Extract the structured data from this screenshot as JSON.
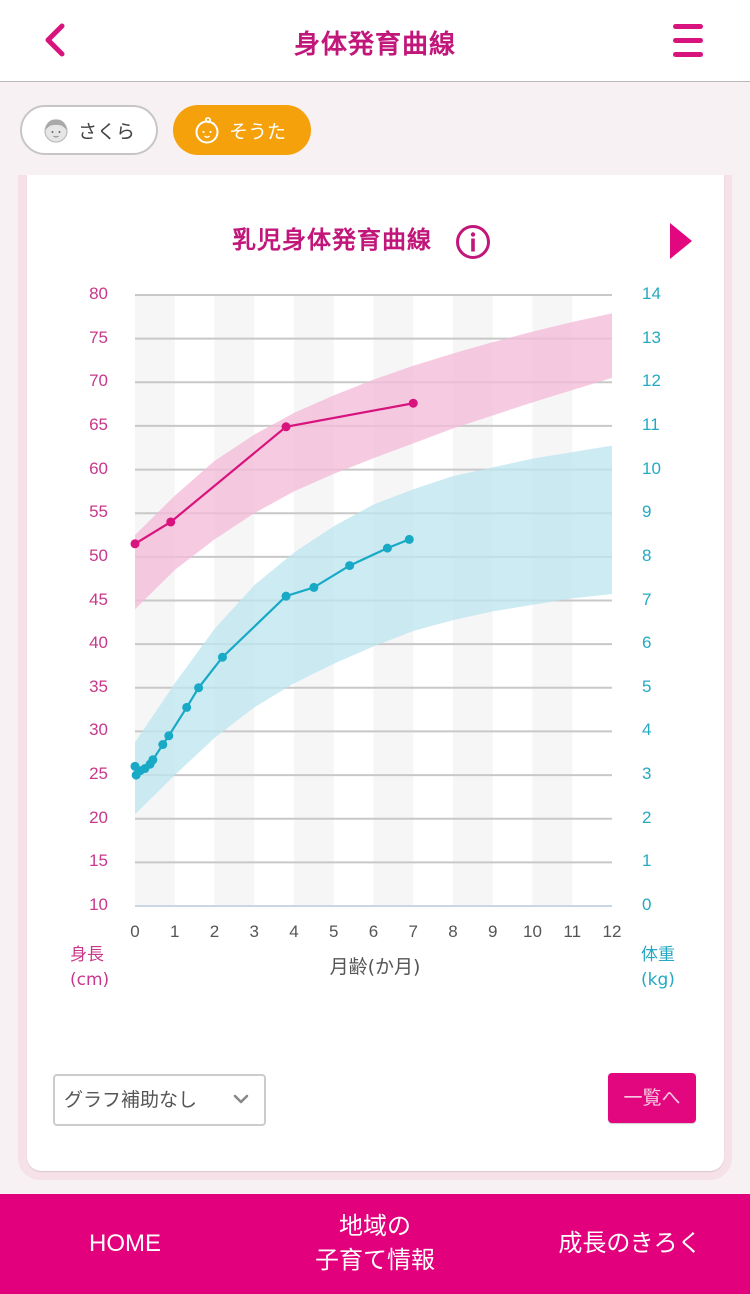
{
  "header": {
    "title": "身体発育曲線",
    "back_icon": "chevron-left-icon",
    "menu_icon": "hamburger-menu-icon",
    "accent_color": "#d8137d"
  },
  "children": [
    {
      "name": "さくら",
      "icon": "girl-face-icon",
      "selected": false
    },
    {
      "name": "そうた",
      "icon": "baby-face-icon",
      "selected": true,
      "color": "#f4a10b"
    }
  ],
  "chart_section": {
    "title": "乳児身体発育曲線",
    "info_icon": "info-circle-icon",
    "next_icon": "triangle-right-icon"
  },
  "chart_data": {
    "type": "line",
    "title": "乳児身体発育曲線",
    "xlabel": "月齢(か月)",
    "ylabel_left": "身長",
    "ylabel_left_unit": "(cm)",
    "ylabel_right": "体重",
    "ylabel_right_unit": "(kg)",
    "x_ticks": [
      "0",
      "1",
      "2",
      "3",
      "4",
      "5",
      "6",
      "7",
      "8",
      "9",
      "10",
      "11",
      "12"
    ],
    "y_left_ticks": [
      "80",
      "75",
      "70",
      "65",
      "60",
      "55",
      "50",
      "45",
      "40",
      "35",
      "30",
      "25",
      "20",
      "15",
      "10"
    ],
    "y_right_ticks": [
      "14",
      "13",
      "12",
      "11",
      "10",
      "9",
      "8",
      "7",
      "6",
      "5",
      "4",
      "3",
      "2",
      "1",
      "0"
    ],
    "xlim": [
      0,
      12
    ],
    "ylim_left": [
      10,
      80
    ],
    "ylim_right": [
      0,
      14
    ],
    "grid": true,
    "series": [
      {
        "name": "身長",
        "axis": "left",
        "color": "#d8137d",
        "x": [
          0,
          0.9,
          3.8,
          7.0
        ],
        "values": [
          51.5,
          54.0,
          64.9,
          67.6
        ]
      },
      {
        "name": "体重",
        "axis": "right",
        "color": "#17a9c6",
        "x": [
          0,
          0.03,
          0.13,
          0.25,
          0.38,
          0.45,
          0.7,
          0.85,
          1.3,
          1.6,
          2.2,
          3.8,
          4.5,
          5.4,
          6.35,
          6.9
        ],
        "values": [
          3.2,
          3.0,
          3.1,
          3.15,
          3.25,
          3.35,
          3.7,
          3.9,
          4.55,
          5.0,
          5.7,
          7.1,
          7.3,
          7.8,
          8.2,
          8.4
        ]
      }
    ],
    "reference_bands": [
      {
        "name": "身長 標準範囲",
        "axis": "left",
        "color": "#f4bcd9",
        "x": [
          0,
          1,
          2,
          3,
          4,
          5,
          6,
          7,
          8,
          9,
          10,
          11,
          12
        ],
        "lower": [
          44.0,
          48.5,
          52.0,
          55.0,
          57.5,
          59.5,
          61.3,
          63.0,
          64.7,
          66.2,
          67.7,
          69.1,
          70.5
        ],
        "upper": [
          52.5,
          57.0,
          61.0,
          64.0,
          66.5,
          68.5,
          70.3,
          71.9,
          73.3,
          74.6,
          75.8,
          76.9,
          77.9
        ]
      },
      {
        "name": "体重 標準範囲",
        "axis": "right",
        "color": "#bfe6ef",
        "x": [
          0,
          1,
          2,
          3,
          4,
          5,
          6,
          7,
          8,
          9,
          10,
          11,
          12
        ],
        "lower": [
          2.1,
          3.0,
          3.85,
          4.55,
          5.1,
          5.55,
          5.95,
          6.3,
          6.55,
          6.75,
          6.9,
          7.05,
          7.15
        ],
        "upper": [
          3.75,
          5.1,
          6.35,
          7.35,
          8.1,
          8.7,
          9.2,
          9.55,
          9.85,
          10.05,
          10.25,
          10.4,
          10.55
        ]
      }
    ]
  },
  "controls": {
    "graph_assist_select": "グラフ補助なし",
    "list_button": "一覧へ"
  },
  "bottom_nav": {
    "home": "HOME",
    "local_info_line1": "地域の",
    "local_info_line2": "子育て情報",
    "growth_record": "成長のきろく",
    "background": "#e2007d"
  }
}
